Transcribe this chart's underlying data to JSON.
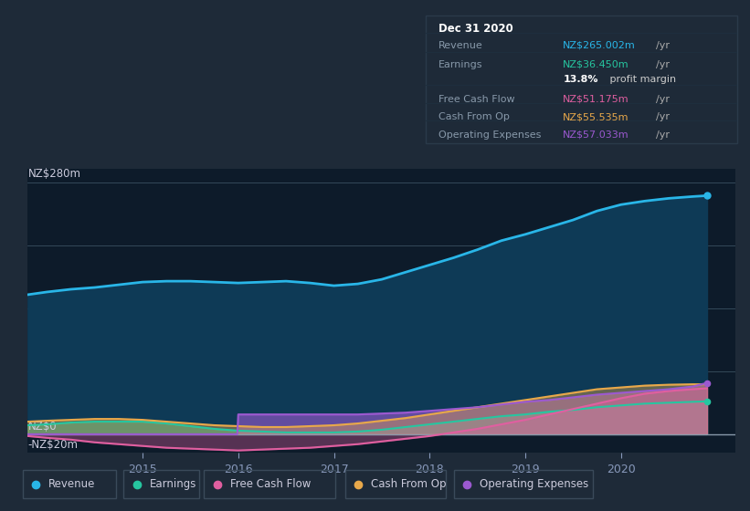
{
  "bg_color": "#1e2a38",
  "plot_bg_color": "#0d1b2a",
  "title_label": "NZ$280m",
  "zero_label": "NZ$0",
  "neg_label": "-NZ$20m",
  "ylim": [
    -20,
    295
  ],
  "xlim": [
    2013.8,
    2021.2
  ],
  "colors": {
    "revenue": "#29b6e8",
    "earnings": "#26c6a0",
    "free_cash_flow": "#e05fa0",
    "cash_from_op": "#e8a84a",
    "operating_expenses": "#9b59d0"
  },
  "legend_items": [
    {
      "label": "Revenue",
      "color": "#29b6e8"
    },
    {
      "label": "Earnings",
      "color": "#26c6a0"
    },
    {
      "label": "Free Cash Flow",
      "color": "#e05fa0"
    },
    {
      "label": "Cash From Op",
      "color": "#e8a84a"
    },
    {
      "label": "Operating Expenses",
      "color": "#9b59d0"
    }
  ],
  "infobox": {
    "title": "Dec 31 2020",
    "rows": [
      {
        "label": "Revenue",
        "value": "NZ$265.002m",
        "unit": "/yr",
        "color": "#29b6e8"
      },
      {
        "label": "Earnings",
        "value": "NZ$36.450m",
        "unit": "/yr",
        "color": "#26c6a0"
      },
      {
        "label": "",
        "value": "13.8%",
        "unit": " profit margin",
        "color": "#ffffff"
      },
      {
        "label": "Free Cash Flow",
        "value": "NZ$51.175m",
        "unit": "/yr",
        "color": "#e05fa0"
      },
      {
        "label": "Cash From Op",
        "value": "NZ$55.535m",
        "unit": "/yr",
        "color": "#e8a84a"
      },
      {
        "label": "Operating Expenses",
        "value": "NZ$57.033m",
        "unit": "/yr",
        "color": "#9b59d0"
      }
    ]
  },
  "revenue": {
    "x": [
      2013.8,
      2014.0,
      2014.25,
      2014.5,
      2014.75,
      2015.0,
      2015.25,
      2015.5,
      2015.75,
      2016.0,
      2016.25,
      2016.5,
      2016.75,
      2017.0,
      2017.25,
      2017.5,
      2017.75,
      2018.0,
      2018.25,
      2018.5,
      2018.75,
      2019.0,
      2019.25,
      2019.5,
      2019.75,
      2020.0,
      2020.25,
      2020.5,
      2020.75,
      2020.9
    ],
    "y": [
      155,
      158,
      161,
      163,
      166,
      169,
      170,
      170,
      169,
      168,
      169,
      170,
      168,
      165,
      167,
      172,
      180,
      188,
      196,
      205,
      215,
      222,
      230,
      238,
      248,
      255,
      259,
      262,
      264,
      265
    ]
  },
  "earnings": {
    "x": [
      2013.8,
      2014.0,
      2014.25,
      2014.5,
      2014.75,
      2015.0,
      2015.25,
      2015.5,
      2015.75,
      2016.0,
      2016.25,
      2016.5,
      2016.75,
      2017.0,
      2017.25,
      2017.5,
      2017.75,
      2018.0,
      2018.25,
      2018.5,
      2018.75,
      2019.0,
      2019.25,
      2019.5,
      2019.75,
      2020.0,
      2020.25,
      2020.5,
      2020.75,
      2020.9
    ],
    "y": [
      10,
      11,
      13,
      14,
      14,
      14,
      12,
      9,
      6,
      4,
      3,
      2,
      2,
      2,
      3,
      5,
      8,
      11,
      14,
      17,
      20,
      22,
      25,
      27,
      30,
      32,
      34,
      35,
      36,
      36.5
    ]
  },
  "free_cash_flow": {
    "x": [
      2013.8,
      2014.0,
      2014.25,
      2014.5,
      2014.75,
      2015.0,
      2015.25,
      2015.5,
      2015.75,
      2016.0,
      2016.25,
      2016.5,
      2016.75,
      2017.0,
      2017.25,
      2017.5,
      2017.75,
      2018.0,
      2018.25,
      2018.5,
      2018.75,
      2019.0,
      2019.25,
      2019.5,
      2019.75,
      2020.0,
      2020.25,
      2020.5,
      2020.75,
      2020.9
    ],
    "y": [
      -2,
      -4,
      -6,
      -9,
      -11,
      -13,
      -15,
      -16,
      -17,
      -18,
      -17,
      -16,
      -15,
      -13,
      -11,
      -8,
      -5,
      -2,
      2,
      6,
      11,
      16,
      22,
      28,
      34,
      40,
      45,
      48,
      50,
      51
    ]
  },
  "cash_from_op": {
    "x": [
      2013.8,
      2014.0,
      2014.25,
      2014.5,
      2014.75,
      2015.0,
      2015.25,
      2015.5,
      2015.75,
      2016.0,
      2016.25,
      2016.5,
      2016.75,
      2017.0,
      2017.25,
      2017.5,
      2017.75,
      2018.0,
      2018.25,
      2018.5,
      2018.75,
      2019.0,
      2019.25,
      2019.5,
      2019.75,
      2020.0,
      2020.25,
      2020.5,
      2020.75,
      2020.9
    ],
    "y": [
      14,
      15,
      16,
      17,
      17,
      16,
      14,
      12,
      10,
      9,
      8,
      8,
      9,
      10,
      12,
      15,
      18,
      22,
      26,
      30,
      34,
      38,
      42,
      46,
      50,
      52,
      54,
      55,
      55.5,
      55.5
    ]
  },
  "operating_expenses": {
    "x": [
      2013.8,
      2014.0,
      2014.25,
      2014.5,
      2014.75,
      2015.0,
      2015.25,
      2015.5,
      2015.75,
      2015.99,
      2016.0,
      2016.25,
      2016.5,
      2016.75,
      2017.0,
      2017.25,
      2017.5,
      2017.75,
      2018.0,
      2018.25,
      2018.5,
      2018.75,
      2019.0,
      2019.25,
      2019.5,
      2019.75,
      2020.0,
      2020.25,
      2020.5,
      2020.75,
      2020.9
    ],
    "y": [
      0,
      0,
      0,
      0,
      0,
      0,
      0,
      0,
      0,
      0,
      22,
      22,
      22,
      22,
      22,
      22,
      23,
      24,
      26,
      28,
      30,
      33,
      36,
      38,
      41,
      44,
      46,
      48,
      50,
      53,
      57
    ]
  }
}
